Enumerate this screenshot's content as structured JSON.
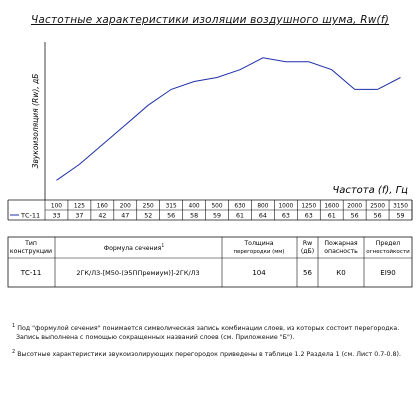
{
  "page_title": "Частотные характеристики изоляции воздушного шума, Rw(f)",
  "chart_data": {
    "type": "line",
    "ylabel": "Звукоизоляция (Rw), дБ",
    "xlabel": "Частота (f), Гц",
    "x": [
      "100",
      "125",
      "160",
      "200",
      "250",
      "315",
      "400",
      "500",
      "630",
      "800",
      "1000",
      "1250",
      "1600",
      "2000",
      "2500",
      "3150"
    ],
    "series": [
      {
        "name": "ТС-11",
        "values": [
          33,
          37,
          42,
          47,
          52,
          56,
          58,
          59,
          61,
          64,
          63,
          63,
          61,
          56,
          56,
          59
        ]
      }
    ],
    "ylim": [
      28,
      68
    ],
    "grid": false,
    "color": "#1f2fa8"
  },
  "spec_table": {
    "headers": {
      "type": "Тип конструкции",
      "formula": "Формула сечения",
      "formula_sup": "1",
      "thickness": "Толщина перегородки (мм)",
      "rw": "Rw (дБ)",
      "fire": "Пожарная опасность",
      "fire_limit": "Предел огнестойкости"
    },
    "row": {
      "type": "ТС-11",
      "formula": "2ГК/Л3-[М50-(Э5ППремиум)]-2ГК/Л3",
      "thickness": "104",
      "rw": "56",
      "fire": "К0",
      "fire_limit": "EI90"
    }
  },
  "footnotes": [
    {
      "num": "1",
      "line1": "Под \"формулой сечения\" понимается символическая запись комбинации слоев, из которых состоит перегородка.",
      "line2": "Запись выполнена с помощью сокращенных названий слоев (см. Приложение \"Б\")."
    },
    {
      "num": "2",
      "line1": "Высотные характеристики звукоизолирующих перегородок приведены в таблице 1.2 Раздела 1 (см. Лист 0.7-0.8).",
      "line2": ""
    }
  ]
}
